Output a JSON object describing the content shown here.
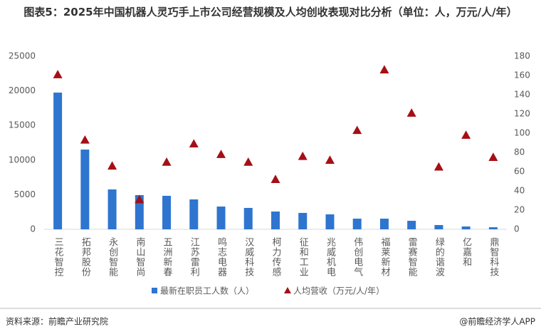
{
  "chart_data": {
    "type": "bar-scatter",
    "title": "图表5：2025年中国机器人灵巧手上市公司经营规模及人均创收表现对比分析（单位：人，万元/人/年）",
    "categories": [
      "三花智控",
      "拓邦股份",
      "永创智能",
      "南山智尚",
      "五洲新春",
      "江苏雷利",
      "鸣志电器",
      "汉威科技",
      "柯力传感",
      "征和工业",
      "兆威机电",
      "伟创电气",
      "福莱新材",
      "雷赛智能",
      "绿的谐波",
      "亿嘉和",
      "鼎智科技"
    ],
    "series": [
      {
        "name": "最新在职员工人数（人）",
        "type": "bar",
        "color": "#2e75d0",
        "values": [
          19750,
          11520,
          5760,
          4940,
          4840,
          4320,
          3290,
          3090,
          2570,
          2370,
          2160,
          1540,
          1540,
          1230,
          620,
          410,
          300
        ]
      },
      {
        "name": "人均营收（万元/人/年）",
        "type": "scatter",
        "axis": "y2",
        "color": "#a50f15",
        "values": [
          161,
          93,
          66,
          31,
          70,
          89,
          78,
          70,
          52,
          76,
          72,
          103,
          166,
          121,
          65,
          98,
          75
        ]
      }
    ],
    "ylim": [
      0,
      25000
    ],
    "yticks": [
      0,
      5000,
      10000,
      15000,
      20000,
      25000
    ],
    "y2lim": [
      0,
      180
    ],
    "y2ticks": [
      0,
      20,
      40,
      60,
      80,
      100,
      120,
      140,
      160,
      180
    ],
    "grid": false,
    "source": "资料来源：前瞻产业研究院",
    "credit": "@前瞻经济学人APP"
  }
}
